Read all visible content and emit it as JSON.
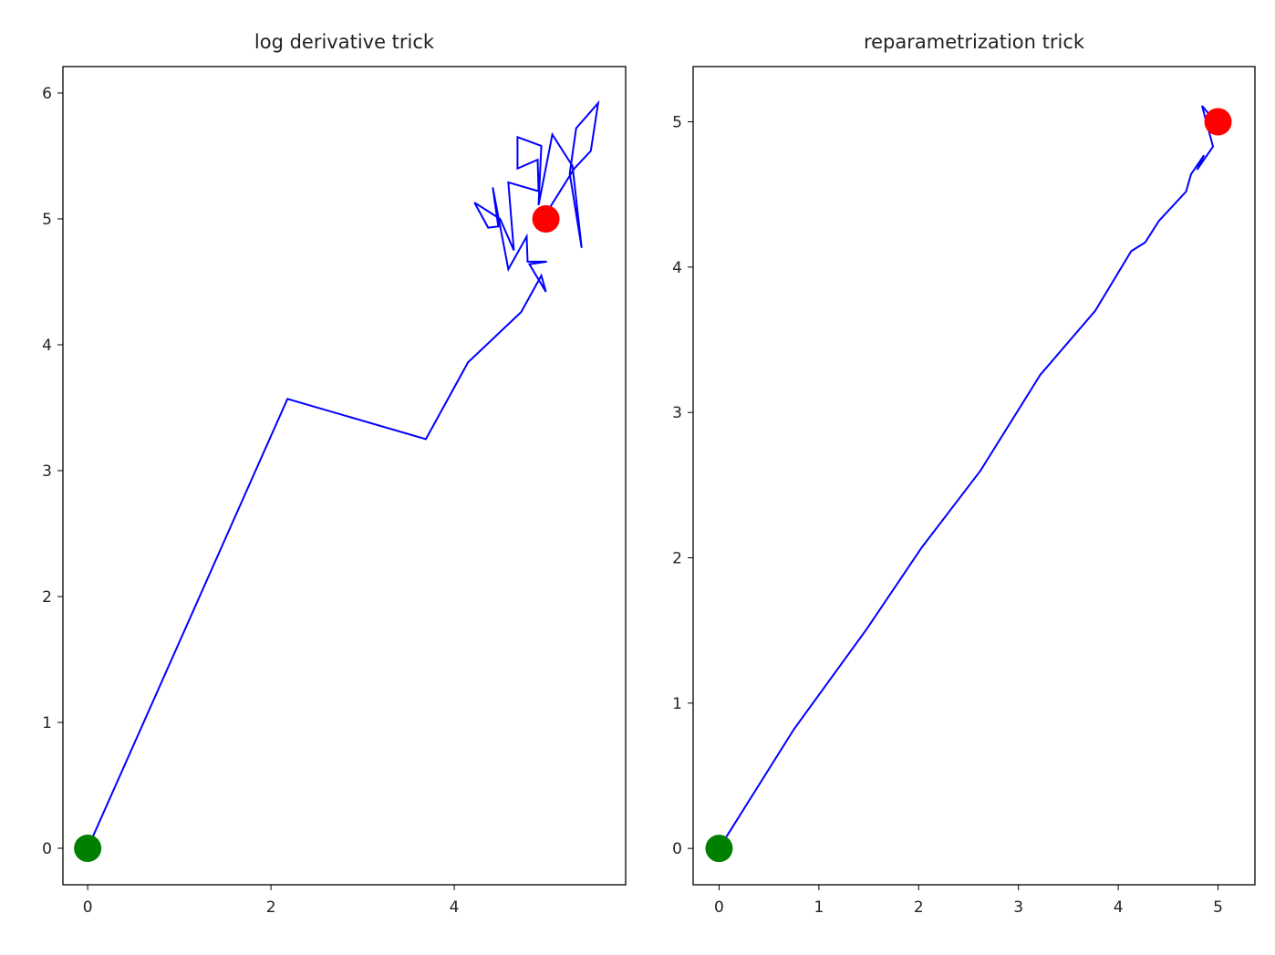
{
  "chart_data": [
    {
      "type": "line",
      "title": "log derivative trick",
      "color": "#0000ff",
      "x": [
        0,
        2.18,
        3.69,
        4.15,
        4.73,
        4.95,
        5.0,
        4.82,
        5.01,
        4.8,
        4.79,
        4.59,
        4.42,
        4.48,
        4.37,
        4.22,
        4.5,
        4.65,
        4.59,
        4.92,
        4.91,
        4.69,
        4.69,
        4.95,
        4.92,
        5.07,
        5.29,
        5.39,
        5.26,
        5.33,
        5.57,
        5.49,
        5.31,
        5.0
      ],
      "values": [
        0,
        3.57,
        3.25,
        3.86,
        4.26,
        4.55,
        4.42,
        4.64,
        4.66,
        4.66,
        4.86,
        4.6,
        5.25,
        4.94,
        4.93,
        5.13,
        5.0,
        4.75,
        5.29,
        5.22,
        5.47,
        5.4,
        5.65,
        5.58,
        5.11,
        5.67,
        5.42,
        4.77,
        5.36,
        5.72,
        5.92,
        5.54,
        5.4,
        5.04
      ],
      "markers": [
        {
          "x": 0,
          "y": 0,
          "color": "#008000"
        },
        {
          "x": 5,
          "y": 5,
          "color": "#ff0000"
        }
      ],
      "xlim": [
        -0.27,
        5.87
      ],
      "ylim": [
        -0.29,
        6.21
      ],
      "xticks": [
        0,
        2,
        4
      ],
      "yticks": [
        0,
        1,
        2,
        3,
        4,
        5,
        6
      ]
    },
    {
      "type": "line",
      "title": "reparametrization trick",
      "color": "#0000ff",
      "x": [
        0,
        0.75,
        1.48,
        2.03,
        2.62,
        3.22,
        3.77,
        4.13,
        4.27,
        4.41,
        4.68,
        4.73,
        4.86,
        4.79,
        4.95,
        4.84,
        4.95,
        5.08,
        5.0
      ],
      "values": [
        0,
        0.82,
        1.51,
        2.07,
        2.6,
        3.26,
        3.7,
        4.11,
        4.17,
        4.32,
        4.52,
        4.64,
        4.77,
        4.67,
        4.83,
        5.11,
        5.02,
        4.96,
        5.0
      ],
      "markers": [
        {
          "x": 0,
          "y": 0,
          "color": "#008000"
        },
        {
          "x": 5,
          "y": 5,
          "color": "#ff0000"
        }
      ],
      "xlim": [
        -0.26,
        5.37
      ],
      "ylim": [
        -0.25,
        5.38
      ],
      "xticks": [
        0,
        1,
        2,
        3,
        4,
        5
      ],
      "yticks": [
        0,
        1,
        2,
        3,
        4,
        5
      ]
    }
  ]
}
